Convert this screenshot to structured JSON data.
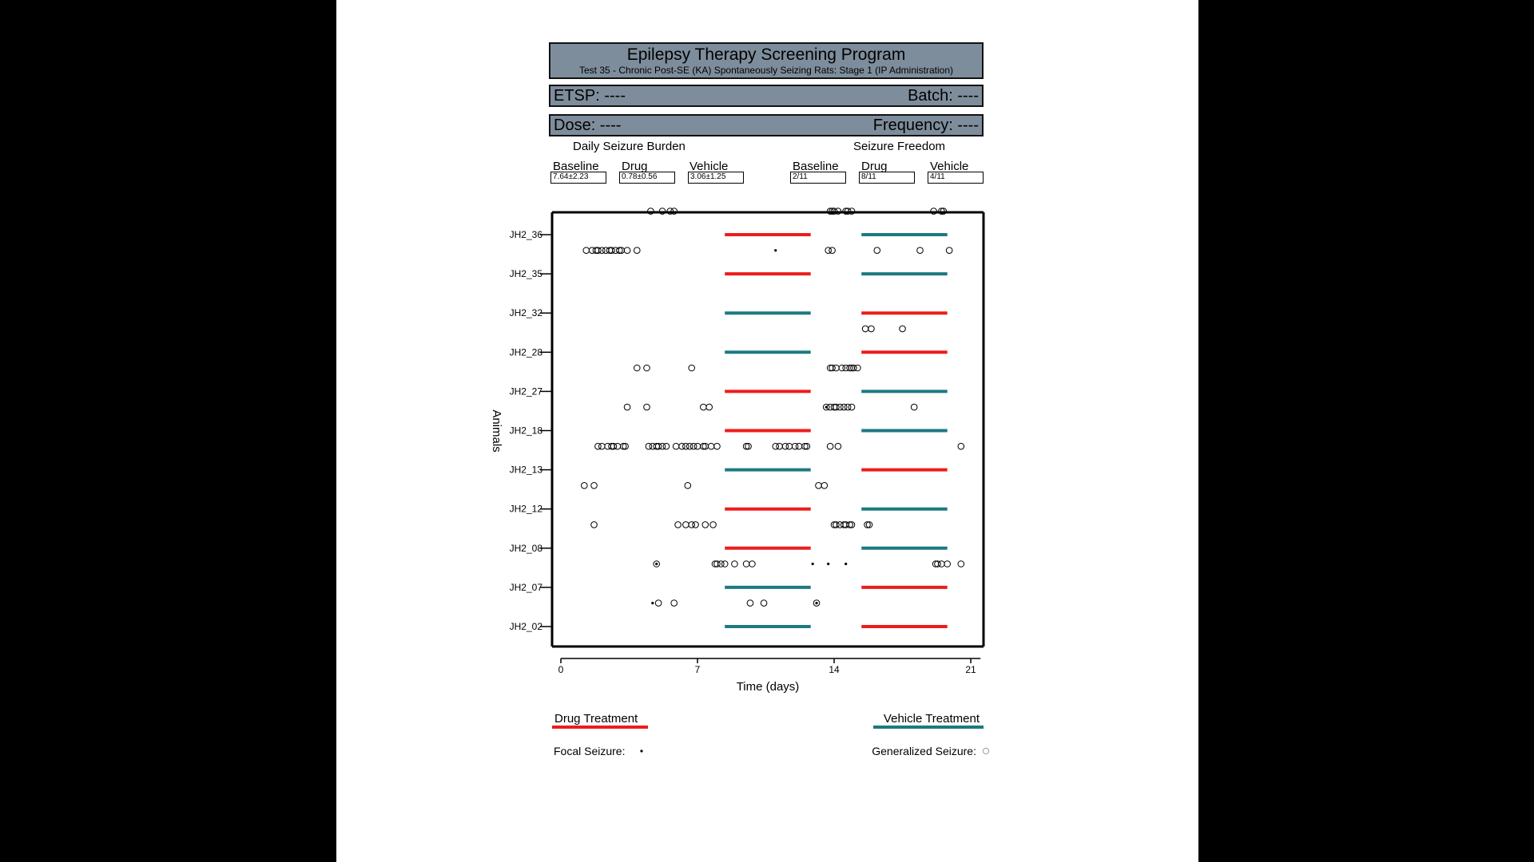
{
  "header": {
    "title": "Epilepsy Therapy Screening Program",
    "subtitle": "Test 35 - Chronic Post-SE (KA) Spontaneously Seizing Rats: Stage 1 (IP Administration)",
    "etsp_label": "ETSP: ----",
    "batch_label": "Batch: ----",
    "dose_label": "Dose: ----",
    "frequency_label": "Frequency: ----"
  },
  "summary": {
    "burden_title": "Daily Seizure Burden",
    "freedom_title": "Seizure Freedom",
    "burden": [
      {
        "label": "Baseline",
        "value": "7.64±2.23"
      },
      {
        "label": "Drug",
        "value": "0.78±0.56"
      },
      {
        "label": "Vehicle",
        "value": "3.06±1.25"
      }
    ],
    "freedom": [
      {
        "label": "Baseline",
        "value": "2/11"
      },
      {
        "label": "Drug",
        "value": "8/11"
      },
      {
        "label": "Vehicle",
        "value": "4/11"
      }
    ]
  },
  "legend": {
    "drug_label": "Drug Treatment",
    "vehicle_label": "Vehicle Treatment",
    "focal_label": "Focal Seizure:",
    "generalized_label": "Generalized Seizure:"
  },
  "colors": {
    "drug": "#ee1c1c",
    "vehicle": "#1c7a80",
    "header_bg": "#7e8d9b"
  },
  "chart_data": {
    "type": "scatter",
    "xlabel": "Time (days)",
    "ylabel": "Animals",
    "xlim": [
      0,
      21.5
    ],
    "xticks": [
      0,
      7,
      14,
      21
    ],
    "periods": {
      "period1": [
        8.4,
        12.8
      ],
      "period2": [
        15.4,
        19.8
      ]
    },
    "animals": [
      {
        "name": "JH2_36",
        "period1": "drug",
        "period2": "vehicle",
        "generalized": [
          4.6,
          5.2,
          5.6,
          5.8,
          13.8,
          13.9,
          14.0,
          14.2,
          14.6,
          14.7,
          14.9,
          19.1,
          19.5,
          19.6
        ],
        "focal": []
      },
      {
        "name": "JH2_35",
        "period1": "drug",
        "period2": "vehicle",
        "generalized": [
          1.3,
          1.6,
          1.8,
          1.9,
          2.1,
          2.3,
          2.5,
          2.6,
          2.8,
          3.0,
          3.1,
          3.4,
          3.9,
          13.7,
          13.9,
          16.2,
          18.4,
          19.9
        ],
        "focal": [
          11.0
        ]
      },
      {
        "name": "JH2_32",
        "period1": "vehicle",
        "period2": "drug",
        "generalized": [],
        "focal": []
      },
      {
        "name": "JH2_28",
        "period1": "vehicle",
        "period2": "drug",
        "generalized": [
          15.6,
          15.9,
          17.5
        ],
        "focal": []
      },
      {
        "name": "JH2_27",
        "period1": "drug",
        "period2": "vehicle",
        "generalized": [
          3.9,
          4.4,
          6.7,
          13.8,
          13.9,
          14.1,
          14.4,
          14.6,
          14.8,
          14.9,
          15.0,
          15.2
        ],
        "focal": []
      },
      {
        "name": "JH2_18",
        "period1": "drug",
        "period2": "vehicle",
        "generalized": [
          3.4,
          4.4,
          7.3,
          7.6,
          13.6,
          13.8,
          14.0,
          14.1,
          14.3,
          14.5,
          14.7,
          14.9,
          18.1
        ],
        "focal": [
          13.6
        ]
      },
      {
        "name": "JH2_13",
        "period1": "vehicle",
        "period2": "drug",
        "generalized": [
          1.9,
          2.1,
          2.4,
          2.6,
          2.7,
          2.9,
          3.2,
          3.3,
          4.5,
          4.7,
          4.9,
          5.0,
          5.2,
          5.4,
          5.9,
          6.2,
          6.4,
          6.6,
          6.8,
          7.0,
          7.3,
          7.4,
          7.7,
          8.0,
          9.5,
          9.6,
          11.0,
          11.2,
          11.5,
          11.7,
          12.0,
          12.2,
          12.5,
          12.6,
          13.8,
          14.2,
          20.5
        ],
        "focal": []
      },
      {
        "name": "JH2_12",
        "period1": "drug",
        "period2": "vehicle",
        "generalized": [
          1.2,
          1.7,
          6.5,
          13.2,
          13.5
        ],
        "focal": []
      },
      {
        "name": "JH2_08",
        "period1": "drug",
        "period2": "vehicle",
        "generalized": [
          1.7,
          6.0,
          6.4,
          6.7,
          6.9,
          7.4,
          7.8,
          14.0,
          14.1,
          14.3,
          14.5,
          14.6,
          14.8,
          14.9,
          15.7,
          15.8
        ],
        "focal": []
      },
      {
        "name": "JH2_07",
        "period1": "vehicle",
        "period2": "drug",
        "generalized": [
          4.9,
          7.9,
          8.0,
          8.2,
          8.4,
          8.9,
          9.5,
          9.8,
          19.2,
          19.3,
          19.5,
          19.8,
          20.5
        ],
        "focal": [
          4.9,
          12.9,
          13.7,
          14.6
        ]
      },
      {
        "name": "JH2_02",
        "period1": "vehicle",
        "period2": "drug",
        "generalized": [
          5.0,
          5.8,
          9.7,
          10.4,
          13.1
        ],
        "focal": [
          4.7,
          13.1
        ]
      }
    ]
  }
}
